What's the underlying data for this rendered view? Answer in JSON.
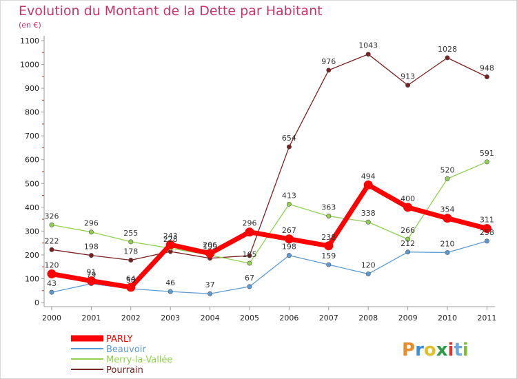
{
  "header": {
    "title": "Evolution du Montant de la Dette par Habitant",
    "subtitle": "(en €)"
  },
  "logo": {
    "text": "Proxiti",
    "colors": [
      "#e88d2a",
      "#3b8fd9",
      "#e2c02b",
      "#2f9b46",
      "#d9372a",
      "#6aa7e0",
      "#84bd3a"
    ]
  },
  "chart_data": {
    "type": "line",
    "categories": [
      "2000",
      "2001",
      "2002",
      "2003",
      "2004",
      "2005",
      "2006",
      "2007",
      "2008",
      "2009",
      "2010",
      "2011"
    ],
    "y_ticks": [
      "0",
      "100",
      "200",
      "300",
      "400",
      "500",
      "600",
      "700",
      "800",
      "900",
      "1000",
      "1100"
    ],
    "ylim": [
      0,
      1100
    ],
    "grid": false,
    "legend_position": "bottom-left",
    "series": [
      {
        "name": "Pourrain",
        "color": "#7b2020",
        "values": [
          222,
          198,
          178,
          214,
          186,
          197,
          654,
          976,
          1043,
          913,
          1028,
          948
        ],
        "labels": [
          "222",
          "198",
          "178",
          "",
          "",
          "",
          "654",
          "976",
          "1043",
          "913",
          "1028",
          "948"
        ]
      },
      {
        "name": "Merry-la-Vallée",
        "color": "#8fd14f",
        "values": [
          326,
          296,
          255,
          228,
          199,
          165,
          413,
          363,
          338,
          266,
          520,
          591
        ],
        "labels": [
          "326",
          "296",
          "255",
          "228",
          "199",
          "165",
          "413",
          "363",
          "338",
          "266",
          "520",
          "591"
        ]
      },
      {
        "name": "Beauvoir",
        "color": "#5b9bd5",
        "values": [
          43,
          79,
          58,
          46,
          37,
          67,
          198,
          159,
          120,
          212,
          210,
          258
        ],
        "labels": [
          "43",
          "79",
          "58",
          "46",
          "37",
          "67",
          "198",
          "159",
          "120",
          "212",
          "210",
          "258"
        ]
      },
      {
        "name": "PARLY",
        "color": "#ff0000",
        "values": [
          120,
          91,
          64,
          243,
          206,
          296,
          267,
          238,
          494,
          400,
          354,
          311
        ],
        "labels": [
          "120",
          "91",
          "64",
          "243",
          "206",
          "296",
          "267",
          "238",
          "494",
          "400",
          "354",
          "311"
        ]
      }
    ],
    "legend_order": [
      "PARLY",
      "Beauvoir",
      "Merry-la-Vallée",
      "Pourrain"
    ]
  }
}
